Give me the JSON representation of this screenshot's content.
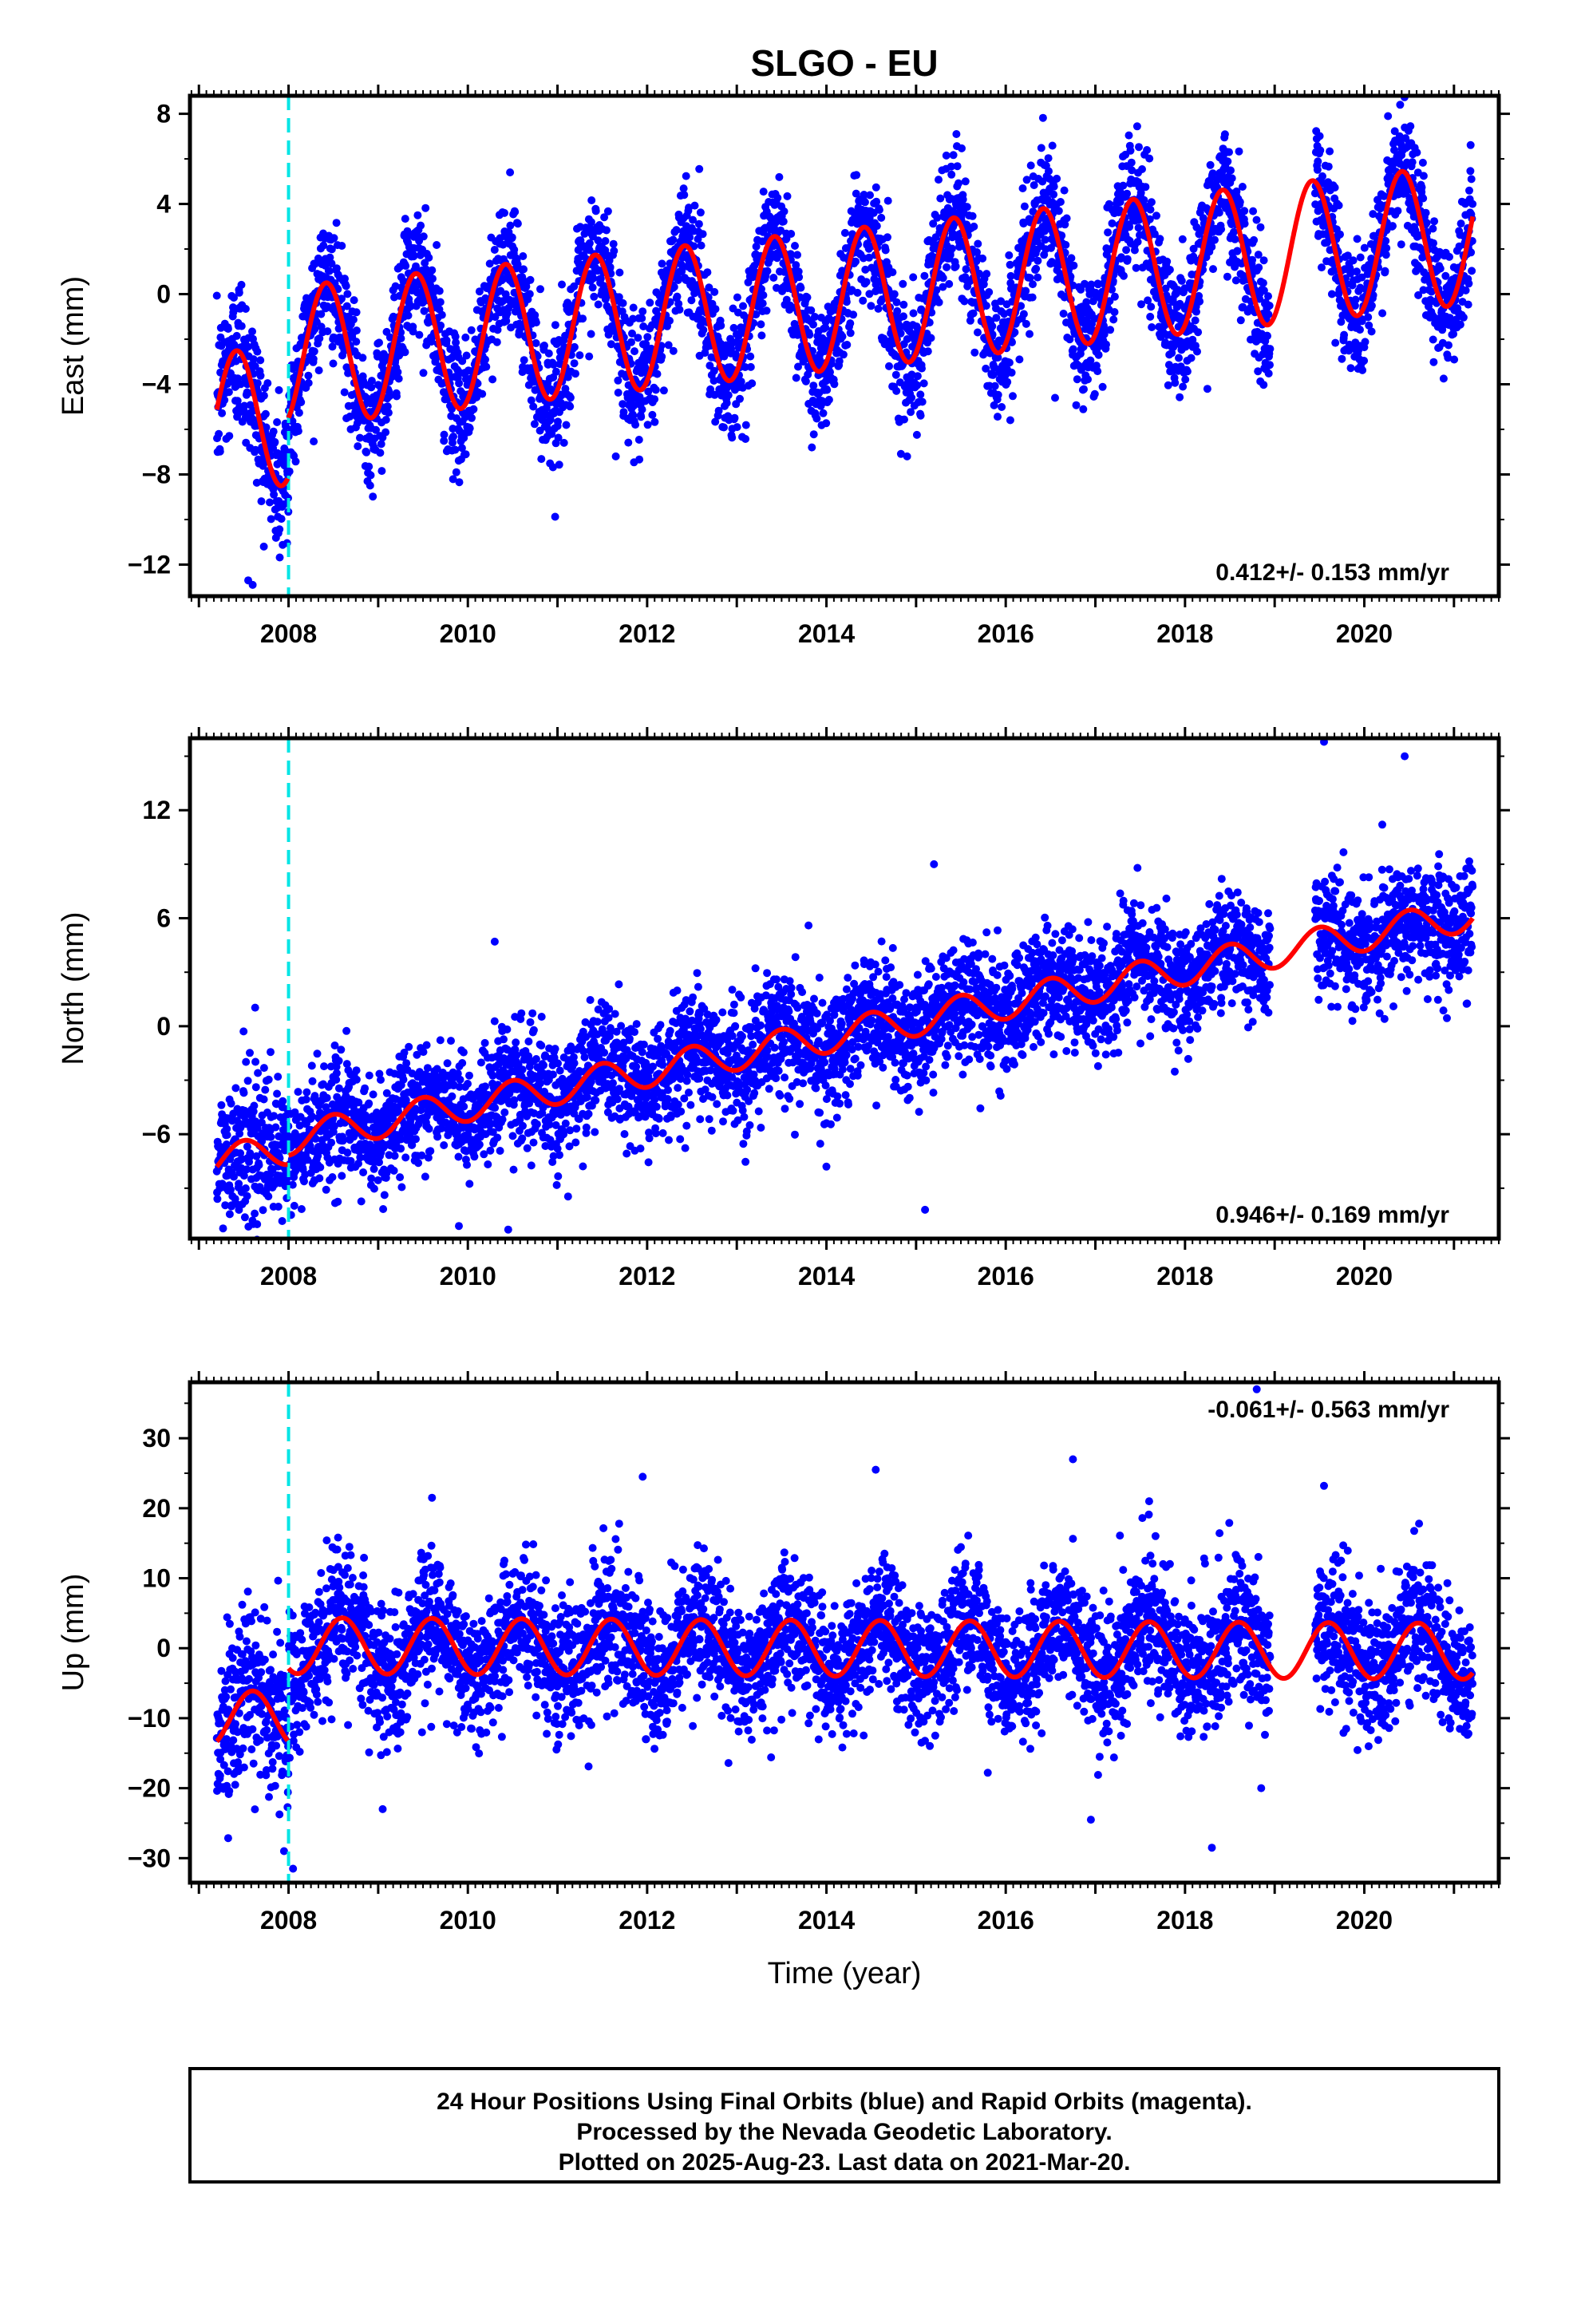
{
  "title": "SLGO - EU",
  "xlabel": "Time (year)",
  "caption": [
    "24 Hour Positions Using Final Orbits (blue) and Rapid Orbits (magenta).",
    "Processed by the Nevada Geodetic Laboratory.",
    "Plotted on 2025-Aug-23. Last data on 2021-Mar-20."
  ],
  "colors": {
    "points": "#0000ff",
    "model": "#ff0000",
    "event": "#00e5e5",
    "frame": "#000000"
  },
  "chart_data": [
    {
      "type": "scatter",
      "name": "east",
      "ylabel": "East (mm)",
      "rate": "0.412+/- 0.153 mm/yr",
      "rate_position": "bottom-right",
      "xlim": [
        2006.9,
        2021.5
      ],
      "ylim": [
        -13.4,
        8.8
      ],
      "yticks": [
        8,
        4,
        0,
        -4,
        -8,
        -12
      ],
      "ytick_labels": [
        "8",
        "4",
        "0",
        "−4",
        "−8",
        "−12"
      ],
      "xticks": [
        2008,
        2010,
        2012,
        2014,
        2016,
        2018,
        2020
      ],
      "xtick_labels": [
        "2008",
        "2010",
        "2012",
        "2014",
        "2016",
        "2018",
        "2020"
      ],
      "event_x": 2008.0,
      "data_start": 2007.2,
      "data_end": 2021.21,
      "gap": [
        2018.95,
        2019.45
      ],
      "model": {
        "offset_ref": 2014.0,
        "offset_value": -0.3,
        "rate": 0.412,
        "amp_before": 3.1,
        "amp_after": 3.1,
        "phase_peak": 0.42,
        "step_at": 2008.0,
        "pre_shift": -2.6,
        "spread": 1.4
      },
      "scatter_note": "approximately 4800 daily positions",
      "outliers": [
        [
          2007.55,
          -12.7
        ],
        [
          2007.6,
          -12.9
        ],
        [
          2011.65,
          -7.2
        ],
        [
          2014.9,
          -7.2
        ],
        [
          2016.55,
          -4.6
        ],
        [
          2018.25,
          -4.2
        ],
        [
          2020.4,
          8.4
        ],
        [
          2015.45,
          7.1
        ]
      ]
    },
    {
      "type": "scatter",
      "name": "north",
      "ylabel": "North (mm)",
      "rate": "0.946+/- 0.169 mm/yr",
      "rate_position": "bottom-right",
      "xlim": [
        2006.9,
        2021.5
      ],
      "ylim": [
        -11.8,
        16.0
      ],
      "yticks": [
        12,
        6,
        0,
        -6
      ],
      "ytick_labels": [
        "12",
        "6",
        "0",
        "−6"
      ],
      "xticks": [
        2008,
        2010,
        2012,
        2014,
        2016,
        2018,
        2020
      ],
      "xtick_labels": [
        "2008",
        "2010",
        "2012",
        "2014",
        "2016",
        "2018",
        "2020"
      ],
      "event_x": 2008.0,
      "data_start": 2007.2,
      "data_end": 2021.21,
      "gap": [
        2018.95,
        2019.45
      ],
      "model": {
        "offset_ref": 2014.0,
        "offset_value": -0.6,
        "rate": 0.946,
        "amp_before": 0.9,
        "amp_after": 0.9,
        "phase_peak": 0.5,
        "step_at": 2008.0,
        "pre_shift": -0.5,
        "spread": 1.6
      },
      "scatter_note": "approximately 4800 daily positions",
      "outliers": [
        [
          2019.55,
          15.8
        ],
        [
          2020.45,
          15.0
        ],
        [
          2015.2,
          9.0
        ],
        [
          2015.1,
          -10.2
        ],
        [
          2010.3,
          4.7
        ],
        [
          2010.45,
          -11.3
        ],
        [
          2009.9,
          -11.1
        ],
        [
          2007.65,
          -11.0
        ],
        [
          2013.8,
          5.6
        ],
        [
          2014.0,
          -7.8
        ],
        [
          2020.2,
          11.2
        ]
      ]
    },
    {
      "type": "scatter",
      "name": "up",
      "ylabel": "Up (mm)",
      "rate": "-0.061+/- 0.563 mm/yr",
      "rate_position": "top-right",
      "xlim": [
        2006.9,
        2021.5
      ],
      "ylim": [
        -33.5,
        38.0
      ],
      "yticks": [
        30,
        20,
        10,
        0,
        -10,
        -20,
        -30
      ],
      "ytick_labels": [
        "30",
        "20",
        "10",
        "0",
        "−10",
        "−20",
        "−30"
      ],
      "xticks": [
        2008,
        2010,
        2012,
        2014,
        2016,
        2018,
        2020
      ],
      "xtick_labels": [
        "2008",
        "2010",
        "2012",
        "2014",
        "2016",
        "2018",
        "2020"
      ],
      "event_x": 2008.0,
      "data_start": 2007.2,
      "data_end": 2021.21,
      "gap": [
        2018.95,
        2019.45
      ],
      "model": {
        "offset_ref": 2014.0,
        "offset_value": 0.0,
        "rate": -0.061,
        "amp_before": 4.0,
        "amp_after": 4.0,
        "phase_peak": 0.6,
        "step_at": 2008.0,
        "pre_shift": -10.5,
        "spread": 4.8
      },
      "scatter_note": "approximately 4800 daily positions",
      "outliers": [
        [
          2018.8,
          37.0
        ],
        [
          2016.75,
          27.0
        ],
        [
          2014.55,
          25.5
        ],
        [
          2011.95,
          24.5
        ],
        [
          2019.55,
          23.2
        ],
        [
          2009.6,
          21.5
        ],
        [
          2017.6,
          21.0
        ],
        [
          2008.05,
          -31.5
        ],
        [
          2007.95,
          -29.0
        ],
        [
          2018.3,
          -28.5
        ],
        [
          2016.95,
          -24.5
        ],
        [
          2009.05,
          -23.0
        ],
        [
          2015.8,
          -17.8
        ],
        [
          2018.85,
          -20.0
        ]
      ]
    }
  ]
}
